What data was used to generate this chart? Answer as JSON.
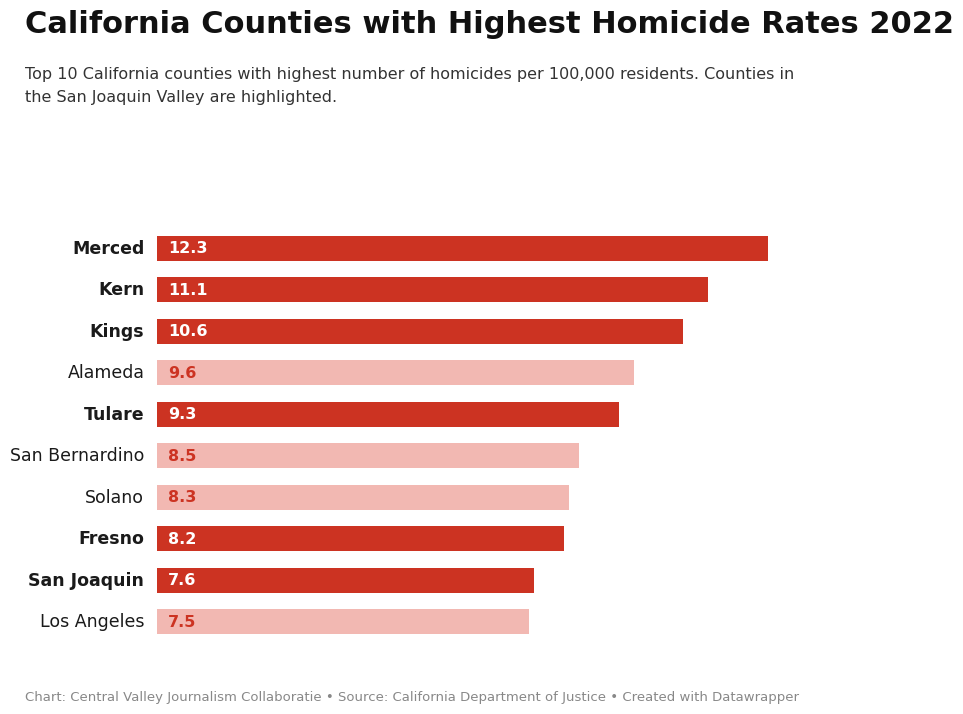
{
  "title": "California Counties with Highest Homicide Rates 2022",
  "subtitle": "Top 10 California counties with highest number of homicides per 100,000 residents. Counties in\nthe San Joaquin Valley are highlighted.",
  "footer": "Chart: Central Valley Journalism Collaboratie • Source: California Department of Justice • Created with Datawrapper",
  "categories": [
    "Merced",
    "Kern",
    "Kings",
    "Alameda",
    "Tulare",
    "San Bernardino",
    "Solano",
    "Fresno",
    "San Joaquin",
    "Los Angeles"
  ],
  "values": [
    12.3,
    11.1,
    10.6,
    9.6,
    9.3,
    8.5,
    8.3,
    8.2,
    7.6,
    7.5
  ],
  "highlighted": [
    true,
    true,
    true,
    false,
    true,
    false,
    false,
    true,
    true,
    false
  ],
  "bold_labels": [
    true,
    true,
    true,
    false,
    true,
    false,
    false,
    true,
    true,
    false
  ],
  "highlight_color": "#cc3322",
  "normal_color": "#f2b8b2",
  "value_label_color_highlight": "#ffffff",
  "value_label_color_normal": "#cc3322",
  "background_color": "#ffffff",
  "bar_height": 0.6,
  "xlim": [
    0,
    12.8
  ],
  "title_fontsize": 22,
  "subtitle_fontsize": 11.5,
  "label_fontsize": 12.5,
  "value_fontsize": 11.5,
  "footer_fontsize": 9.5
}
